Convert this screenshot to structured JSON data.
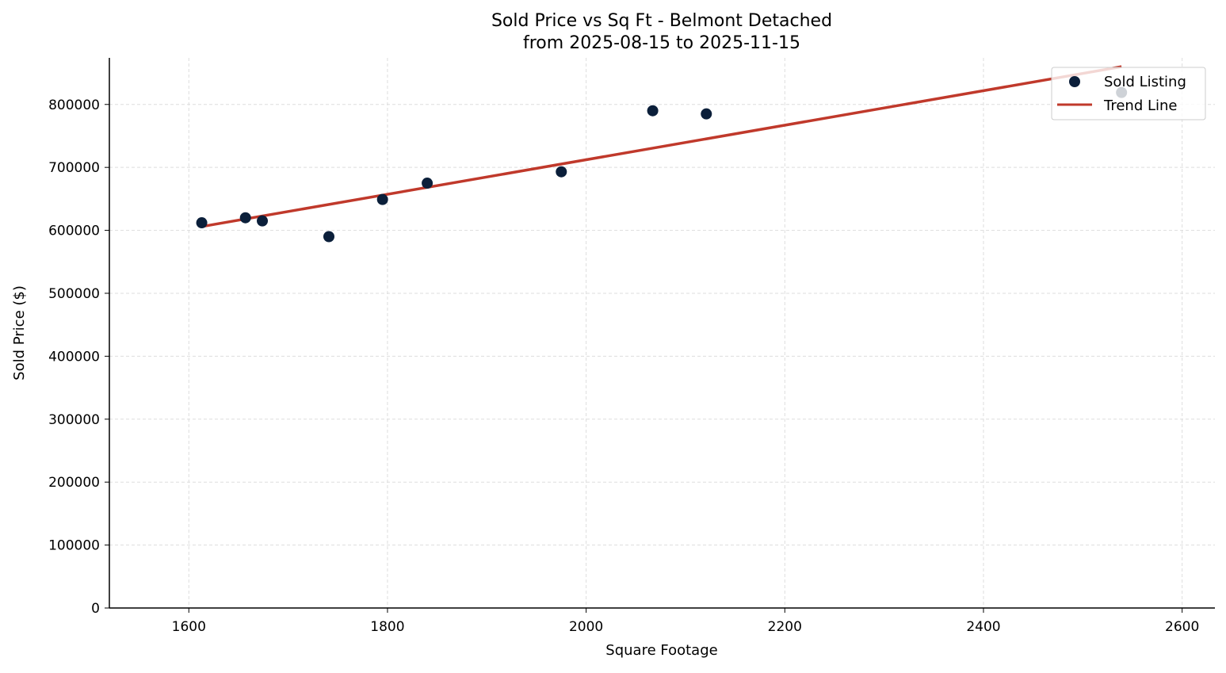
{
  "chart_data": {
    "type": "scatter",
    "title": "Sold Price vs Sq Ft - Belmont Detached",
    "subtitle": "from 2025-08-15 to 2025-11-15",
    "xlabel": "Square Footage",
    "ylabel": "Sold Price ($)",
    "xlim": [
      1520,
      2633
    ],
    "ylim": [
      0,
      874000
    ],
    "xticks": [
      1600,
      1800,
      2000,
      2200,
      2400,
      2600
    ],
    "yticks": [
      0,
      100000,
      200000,
      300000,
      400000,
      500000,
      600000,
      700000,
      800000
    ],
    "grid": true,
    "legend_position": "top-right",
    "series": [
      {
        "name": "Sold Listing",
        "kind": "scatter",
        "color": "#0b1f3a",
        "x": [
          1613,
          1657,
          1674,
          1741,
          1795,
          1840,
          1975,
          2067,
          2121,
          2539
        ],
        "y": [
          612000,
          620000,
          615000,
          590000,
          649000,
          675000,
          693000,
          790000,
          785000,
          819000
        ]
      },
      {
        "name": "Trend Line",
        "kind": "line",
        "color": "#c0392b",
        "x": [
          1613,
          2539
        ],
        "y": [
          606000,
          860000
        ]
      }
    ]
  }
}
